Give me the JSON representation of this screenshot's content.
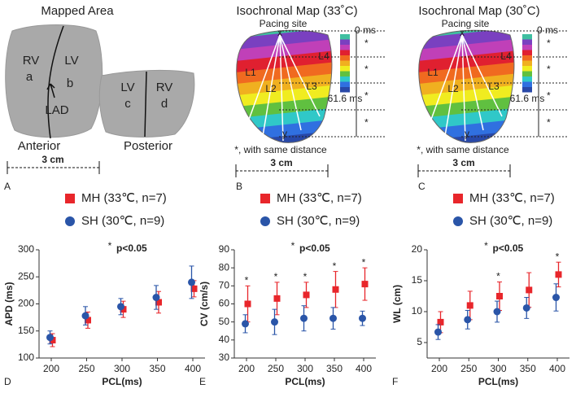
{
  "panels": {
    "A": {
      "title": "Mapped Area",
      "anterior_labels": [
        "RV",
        "a",
        "LV",
        "b",
        "LAD"
      ],
      "anterior": "Anterior",
      "posterior_labels": [
        "LV",
        "c",
        "RV",
        "d"
      ],
      "posterior": "Posterior",
      "scale": "3 cm",
      "letter": "A"
    },
    "B": {
      "title": "Isochronal Map (33˚C)",
      "pacing": "Pacing site",
      "start": "0 ms",
      "end": "61.6 ms",
      "lines": [
        "L1",
        "L2",
        "L3",
        "L4"
      ],
      "x_point": "x",
      "y_point": "y",
      "distance_marks": [
        "*",
        "*",
        "*",
        "*"
      ],
      "note": "*, with same distance",
      "scale": "3 cm",
      "letter": "B"
    },
    "C": {
      "title": "Isochronal Map (30˚C)",
      "pacing": "Pacing site",
      "start": "0 ms",
      "end": "61.6 ms",
      "lines": [
        "L1",
        "L2",
        "L3",
        "L4"
      ],
      "x_point": "x",
      "y_point": "y",
      "distance_marks": [
        "*",
        "*",
        "*",
        "*"
      ],
      "note": "*, with same distance",
      "scale": "3 cm",
      "letter": "C"
    }
  },
  "chart_data": [
    {
      "type": "errorbar",
      "letter": "D",
      "annotation_star": "*",
      "annotation": "p<0.05",
      "xlabel": "PCL(ms)",
      "ylabel": "APD (ms)",
      "categories": [
        "200",
        "250",
        "300",
        "350",
        "400"
      ],
      "ylim": [
        100,
        300
      ],
      "yticks": [
        100,
        150,
        200,
        250,
        300
      ],
      "star_label": "*",
      "significant": [
        false,
        false,
        false,
        false,
        false
      ],
      "series": [
        {
          "name": "MH (33℃, n=7)",
          "color": "#e8262b",
          "marker": "square",
          "values": [
            133,
            170,
            190,
            203,
            228
          ],
          "errors": [
            12,
            15,
            15,
            20,
            15
          ]
        },
        {
          "name": "SH (30℃, n=9)",
          "color": "#2a55a8",
          "marker": "circle",
          "values": [
            138,
            178,
            195,
            212,
            240
          ],
          "errors": [
            12,
            17,
            15,
            22,
            30
          ]
        }
      ]
    },
    {
      "type": "errorbar",
      "letter": "E",
      "annotation_star": "*",
      "annotation": "p<0.05",
      "xlabel": "PCL(ms)",
      "ylabel": "CV (cm/s)",
      "categories": [
        "200",
        "250",
        "300",
        "350",
        "400"
      ],
      "ylim": [
        30,
        90
      ],
      "yticks": [
        30,
        40,
        50,
        60,
        70,
        80,
        90
      ],
      "star_label": "*",
      "significant": [
        true,
        true,
        true,
        true,
        true
      ],
      "series": [
        {
          "name": "MH (33℃, n=7)",
          "color": "#e8262b",
          "marker": "square",
          "values": [
            60,
            63,
            65,
            68,
            71
          ],
          "errors": [
            10,
            9,
            7,
            10,
            9
          ]
        },
        {
          "name": "SH (30℃, n=9)",
          "color": "#2a55a8",
          "marker": "circle",
          "values": [
            49,
            50,
            52,
            52,
            52
          ],
          "errors": [
            5,
            7,
            7,
            6,
            4
          ]
        }
      ]
    },
    {
      "type": "errorbar",
      "letter": "F",
      "annotation_star": "*",
      "annotation": "p<0.05",
      "xlabel": "PCL(ms)",
      "ylabel": "WL (cm)",
      "categories": [
        "200",
        "250",
        "300",
        "350",
        "400"
      ],
      "ylim": [
        2.5,
        20
      ],
      "yticks": [
        5,
        10,
        15,
        20
      ],
      "star_label": "*",
      "significant": [
        false,
        false,
        true,
        false,
        true
      ],
      "series": [
        {
          "name": "MH (33℃, n=7)",
          "color": "#e8262b",
          "marker": "square",
          "values": [
            8.3,
            11,
            12.5,
            13.5,
            16
          ],
          "errors": [
            1.7,
            2.3,
            2.3,
            2.8,
            2
          ]
        },
        {
          "name": "SH (30℃, n=9)",
          "color": "#2a55a8",
          "marker": "circle",
          "values": [
            6.7,
            8.7,
            10,
            10.6,
            12.3
          ],
          "errors": [
            1.2,
            1.5,
            1.7,
            1.7,
            2.2
          ]
        }
      ]
    }
  ]
}
